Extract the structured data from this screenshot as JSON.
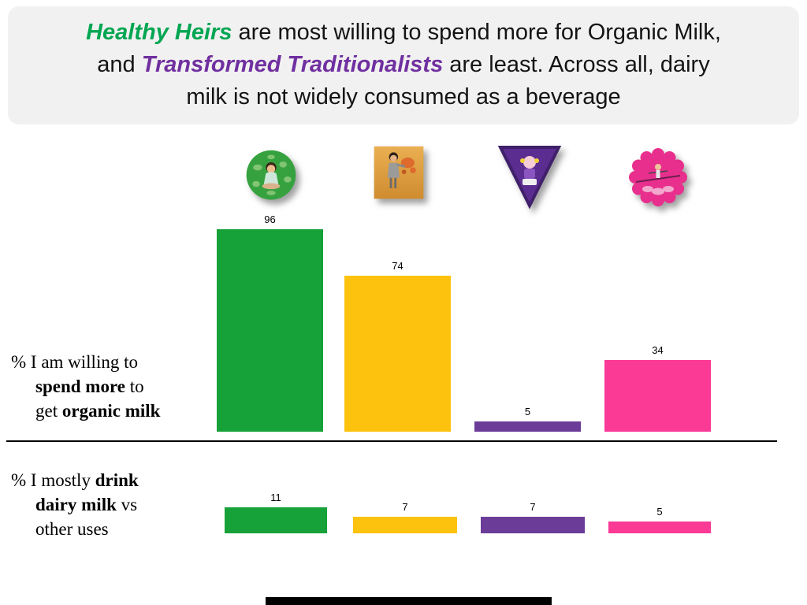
{
  "title": {
    "t1": "Healthy Heirs",
    "t2": " are most willing to spend more for Organic Milk,",
    "t3": "and ",
    "t4": "Transformed Traditionalists",
    "t5": " are least. Across all, dairy",
    "t6": "milk is not widely consumed as a beverage",
    "t1_color": "#00A651",
    "t4_color": "#7030A0"
  },
  "row_labels": {
    "row1_line1": "% I am willing to",
    "row1_line2_bold": "spend more",
    "row1_line2_rest": " to",
    "row1_line3_pre": "get ",
    "row1_line3_bold": "organic milk",
    "row2_line1_pre": "% I mostly ",
    "row2_line1_bold": "drink",
    "row2_line2_bold": "dairy milk",
    "row2_line2_rest": " vs",
    "row2_line3": "other uses"
  },
  "segments": [
    {
      "icon": "meditating-person-icon",
      "color": "#17A139"
    },
    {
      "icon": "graffiti-person-icon",
      "color": "#FDC20E"
    },
    {
      "icon": "triangle-person-icon",
      "color": "#6B3D98"
    },
    {
      "icon": "tightrope-walker-icon",
      "color": "#FB3A96"
    }
  ],
  "chart_data": {
    "type": "bar",
    "categories": [
      "Healthy Heirs (green)",
      "gold segment",
      "Transformed Traditionalists (purple)",
      "pink segment"
    ],
    "series": [
      {
        "name": "% I am willing to spend more to get organic milk",
        "values": [
          96,
          74,
          5,
          34
        ]
      },
      {
        "name": "% I mostly drink dairy milk vs other uses",
        "values": [
          11,
          7,
          7,
          5
        ]
      }
    ],
    "colors": [
      "#17A139",
      "#FDC20E",
      "#6B3D98",
      "#FB3A96"
    ],
    "ylim": [
      0,
      100
    ],
    "grid": false,
    "data_labels": true,
    "legend": "none"
  }
}
